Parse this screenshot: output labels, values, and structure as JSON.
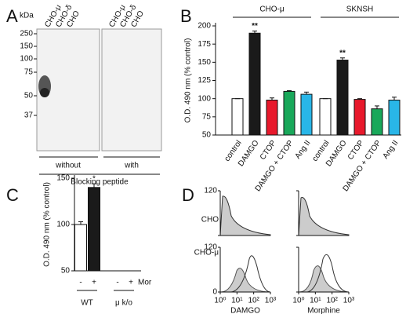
{
  "panel_labels": [
    "A",
    "B",
    "C",
    "D"
  ],
  "blot": {
    "unit": "kDa",
    "lanes": [
      "CHO-μ",
      "CHO-δ",
      "CHO",
      "CHO-μ",
      "CHO-δ",
      "CHO"
    ],
    "markers": [
      250,
      150,
      100,
      75,
      50,
      37
    ],
    "groups": [
      "without",
      "with"
    ],
    "caption": "Blocking peptide"
  },
  "chart_data": [
    {
      "type": "bar",
      "ylabel": "O.D. 490 nm (% control)",
      "categories": [
        "control",
        "DAMGO",
        "CTOP",
        "DAMGO + CTOP",
        "Ang II"
      ],
      "colors": [
        "#ffffff",
        "#1a1a1a",
        "#e8192c",
        "#19a85a",
        "#29b6e8"
      ],
      "series": [
        {
          "name": "CHO-μ",
          "values": [
            100,
            190,
            98,
            110,
            106
          ],
          "errors": [
            0,
            3,
            3,
            1,
            3
          ]
        },
        {
          "name": "SKNSH",
          "values": [
            100,
            153,
            99,
            86,
            98
          ],
          "errors": [
            0,
            3,
            1,
            4,
            4
          ]
        }
      ],
      "ylim": [
        50,
        200
      ],
      "yticks": [
        50,
        75,
        100,
        125,
        150,
        175,
        200
      ],
      "annotations": [
        {
          "text": "**",
          "series": 0,
          "index": 1
        },
        {
          "text": "**",
          "series": 1,
          "index": 1
        }
      ]
    },
    {
      "type": "bar",
      "ylabel": "O.D. 490 nm (% control)",
      "categories": [
        "-",
        "+",
        "-",
        "+"
      ],
      "category_label": "Mor",
      "groups": [
        "WT",
        "μ k/o"
      ],
      "colors": [
        "#ffffff",
        "#1a1a1a",
        "#ffffff",
        "#1a1a1a"
      ],
      "values": [
        100,
        140,
        null,
        null
      ],
      "errors": [
        3,
        4,
        null,
        null
      ],
      "ylim": [
        50,
        150
      ],
      "yticks": [
        50,
        100,
        150
      ],
      "annotations": [
        {
          "text": "*",
          "index": 1
        }
      ]
    }
  ],
  "flow": {
    "rows": [
      "CHO",
      "CHO-μ"
    ],
    "columns": [
      "DAMGO",
      "Morphine"
    ],
    "ylim": [
      0,
      120
    ],
    "yticks": [
      0,
      120
    ],
    "xlim": [
      1,
      1000
    ],
    "xticks": [
      {
        "value": 1,
        "label": "10⁰"
      },
      {
        "value": 10,
        "label": "10¹"
      },
      {
        "value": 100,
        "label": "10²"
      },
      {
        "value": 1000,
        "label": "10³"
      }
    ]
  }
}
